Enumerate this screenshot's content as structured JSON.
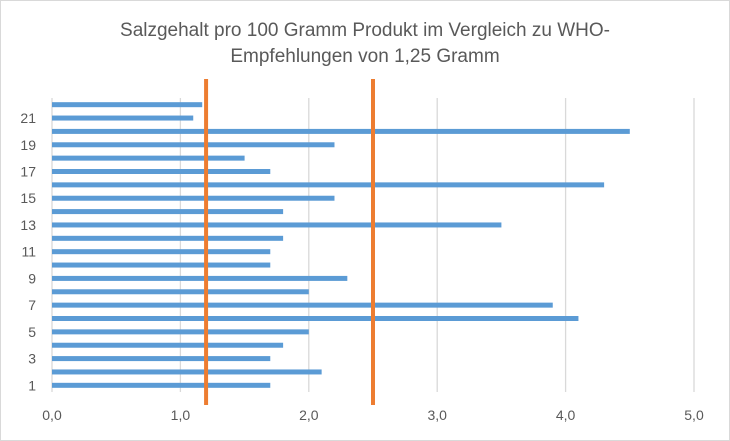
{
  "chart_data": {
    "type": "bar",
    "orientation": "horizontal",
    "title_line1": "Salzgehalt pro 100 Gramm Produkt im Vergleich zu WHO-",
    "title_line2": "Empfehlungen von 1,25 Gramm",
    "categories": [
      "1",
      "2",
      "3",
      "4",
      "5",
      "6",
      "7",
      "8",
      "9",
      "10",
      "11",
      "12",
      "13",
      "14",
      "15",
      "16",
      "17",
      "18",
      "19",
      "20",
      "21",
      "22"
    ],
    "category_tick_labels": [
      "1",
      "3",
      "5",
      "7",
      "9",
      "11",
      "13",
      "15",
      "17",
      "19",
      "21"
    ],
    "values": [
      1.7,
      2.1,
      1.7,
      1.8,
      2.0,
      4.1,
      3.9,
      2.0,
      2.3,
      1.7,
      1.7,
      1.8,
      3.5,
      1.8,
      2.2,
      4.3,
      1.7,
      1.5,
      2.2,
      4.5,
      1.1,
      1.17
    ],
    "xlim": [
      0,
      5
    ],
    "x_tick_labels": [
      "0,0",
      "1,0",
      "2,0",
      "3,0",
      "4,0",
      "5,0"
    ],
    "x_ticks": [
      0,
      1,
      2,
      3,
      4,
      5
    ],
    "reference_lines": [
      1.2,
      2.5
    ],
    "grid": "vertical",
    "legend": "none",
    "colors": {
      "bar": "#5b9bd5",
      "reference_line": "#ed7d31",
      "grid": "#d9d9d9",
      "text": "#595959"
    }
  }
}
